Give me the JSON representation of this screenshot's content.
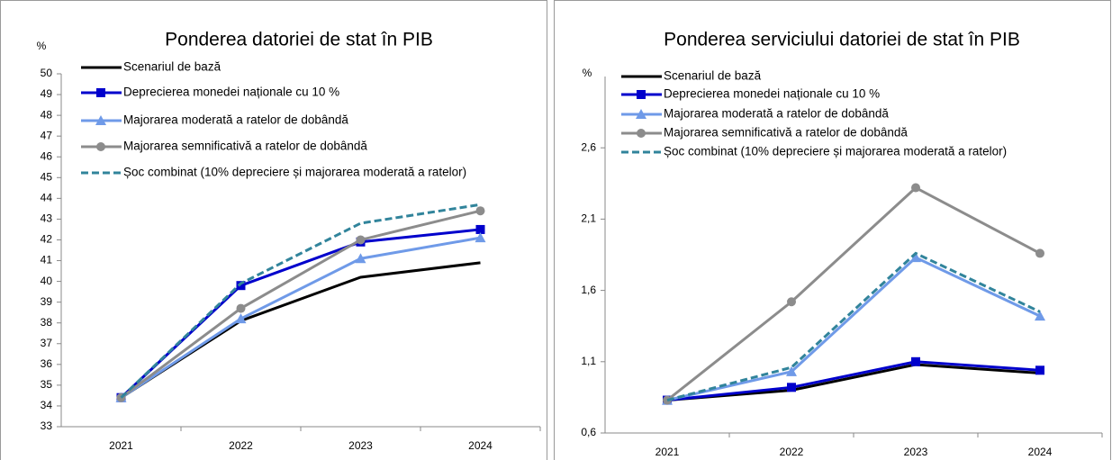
{
  "chart_data": [
    {
      "type": "line",
      "title": "Ponderea datoriei de stat în PIB",
      "y_label": "%",
      "categories": [
        "2021",
        "2022",
        "2023",
        "2024"
      ],
      "ylim": [
        33,
        50
      ],
      "yticks": [
        33,
        34,
        35,
        36,
        37,
        38,
        39,
        40,
        41,
        42,
        43,
        44,
        45,
        46,
        47,
        48,
        49,
        50
      ],
      "series": [
        {
          "name": "Scenariul de bază",
          "color": "#000000",
          "values": [
            34.4,
            38.1,
            40.2,
            40.9
          ]
        },
        {
          "name": "Deprecierea monedei naționale cu 10 %",
          "color": "#0000cc",
          "marker": "square",
          "values": [
            34.4,
            39.8,
            41.9,
            42.5
          ]
        },
        {
          "name": "Majorarea moderată a ratelor de dobândă",
          "color": "#6f9ae8",
          "marker": "triangle",
          "values": [
            34.4,
            38.2,
            41.1,
            42.1
          ]
        },
        {
          "name": "Majorarea semnificativă a ratelor de dobândă",
          "color": "#8c8c8c",
          "marker": "circle",
          "values": [
            34.4,
            38.7,
            42.0,
            43.4
          ]
        },
        {
          "name": "Șoc combinat (10% depreciere și majorarea moderată a ratelor)",
          "color": "#31849b",
          "dash": true,
          "values": [
            34.4,
            39.9,
            42.8,
            43.7
          ]
        }
      ]
    },
    {
      "type": "line",
      "title": "Ponderea serviciului datoriei de stat în PIB",
      "y_label": "%",
      "categories": [
        "2021",
        "2022",
        "2023",
        "2024"
      ],
      "ylim": [
        0.6,
        3.1
      ],
      "yticks": [
        {
          "value": 0.6,
          "label": "0,6"
        },
        {
          "value": 1.1,
          "label": "1,1"
        },
        {
          "value": 1.6,
          "label": "1,6"
        },
        {
          "value": 2.1,
          "label": "2,1"
        },
        {
          "value": 2.6,
          "label": "2,6"
        }
      ],
      "series": [
        {
          "name": "Scenariul de bază",
          "color": "#000000",
          "values": [
            0.83,
            0.9,
            1.08,
            1.02
          ]
        },
        {
          "name": "Deprecierea monedei naționale cu 10 %",
          "color": "#0000cc",
          "marker": "square",
          "values": [
            0.83,
            0.92,
            1.1,
            1.04
          ]
        },
        {
          "name": "Majorarea moderată a ratelor de dobândă",
          "color": "#6f9ae8",
          "marker": "triangle",
          "values": [
            0.83,
            1.03,
            1.83,
            1.42
          ]
        },
        {
          "name": "Majorarea semnificativă a ratelor de dobândă",
          "color": "#8c8c8c",
          "marker": "circle",
          "values": [
            0.83,
            1.52,
            2.32,
            1.86
          ]
        },
        {
          "name": "Șoc combinat (10% depreciere și majorarea moderată a ratelor)",
          "color": "#31849b",
          "dash": true,
          "values": [
            0.83,
            1.06,
            1.86,
            1.45
          ]
        }
      ]
    }
  ]
}
